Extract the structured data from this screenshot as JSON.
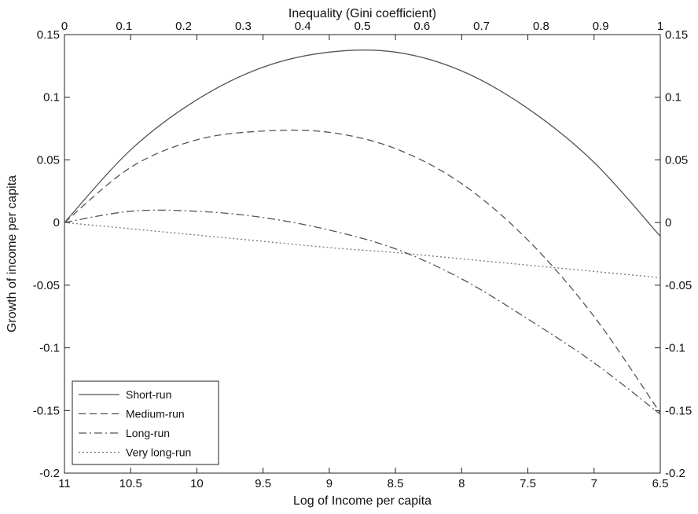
{
  "chart_data": {
    "type": "line",
    "title": "",
    "xlabel": "Log of Income per capita",
    "ylabel": "Growth of income per capita",
    "x2label": "Inequality (Gini coefficient)",
    "x_reversed": true,
    "xlim": [
      11,
      6.5
    ],
    "ylim": [
      -0.2,
      0.15
    ],
    "x2lim": [
      0,
      1
    ],
    "x_ticks": [
      "11",
      "10.5",
      "10",
      "9.5",
      "9",
      "8.5",
      "8",
      "7.5",
      "7",
      "6.5"
    ],
    "x2_ticks": [
      "0",
      "0.1",
      "0.2",
      "0.3",
      "0.4",
      "0.5",
      "0.6",
      "0.7",
      "0.8",
      "0.9",
      "1"
    ],
    "y_ticks": [
      "0.15",
      "0.1",
      "0.05",
      "0",
      "-0.05",
      "-0.1",
      "-0.15",
      "-0.2"
    ],
    "grid": false,
    "legend_position": "bottom-left",
    "x": [
      11,
      10.5,
      10,
      9.5,
      9,
      8.5,
      8,
      7.5,
      7,
      6.5
    ],
    "series": [
      {
        "name": "Short-run",
        "style": "solid",
        "color": "#555555",
        "values": [
          0,
          0.058,
          0.098,
          0.124,
          0.136,
          0.136,
          0.121,
          0.091,
          0.048,
          -0.011
        ]
      },
      {
        "name": "Medium-run",
        "style": "dashed",
        "color": "#555555",
        "values": [
          0,
          0.044,
          0.066,
          0.073,
          0.072,
          0.059,
          0.031,
          -0.014,
          -0.075,
          -0.152
        ]
      },
      {
        "name": "Long-run",
        "style": "dashdot",
        "color": "#555555",
        "values": [
          0,
          0.009,
          0.009,
          0.004,
          -0.006,
          -0.021,
          -0.045,
          -0.077,
          -0.112,
          -0.153
        ]
      },
      {
        "name": "Very long-run",
        "style": "dotted",
        "color": "#777777",
        "values": [
          0,
          -0.005,
          -0.01,
          -0.015,
          -0.02,
          -0.024,
          -0.029,
          -0.034,
          -0.039,
          -0.044
        ]
      }
    ]
  }
}
